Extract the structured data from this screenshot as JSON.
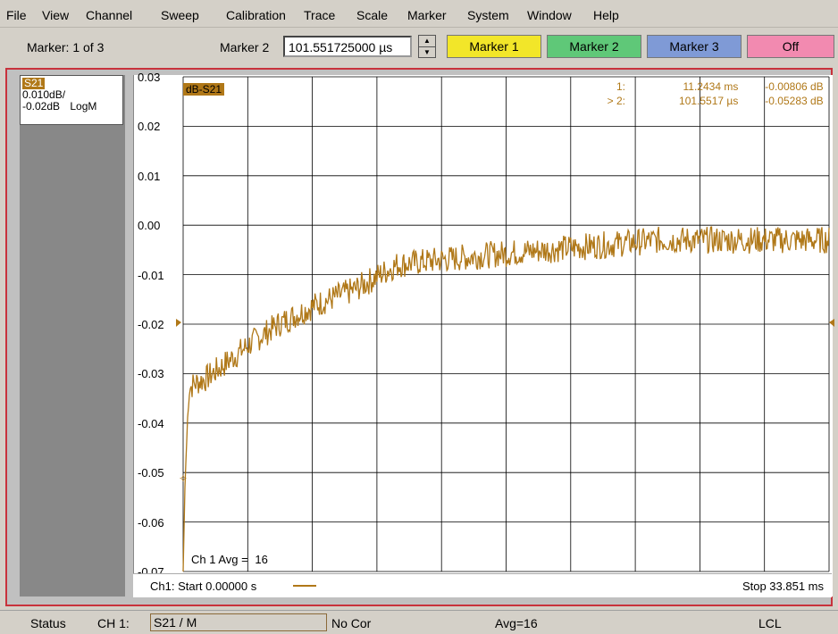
{
  "menu": [
    "File",
    "View",
    "Channel",
    "Sweep",
    "Calibration",
    "Trace",
    "Scale",
    "Marker",
    "System",
    "Window",
    "Help"
  ],
  "toolbar": {
    "marker_count": "Marker: 1 of 3",
    "marker_label": "Marker 2",
    "marker_value": "101.551725000 µs",
    "buttons": [
      {
        "label": "Marker 1",
        "color": "#f2e629"
      },
      {
        "label": "Marker 2",
        "color": "#5fc878"
      },
      {
        "label": "Marker 3",
        "color": "#7f9ad6"
      },
      {
        "label": "Off",
        "color": "#f28ab0"
      }
    ]
  },
  "trace": {
    "name": "S21",
    "scale": "0.010dB/",
    "ref": "-0.02dB",
    "format": "LogM"
  },
  "plot": {
    "trace_label": "dB-S21",
    "marker_readout": [
      {
        "id": "1:",
        "x": "11.2434 ms",
        "y": "-0.00806 dB"
      },
      {
        "id": "> 2:",
        "x": "101.5517 µs",
        "y": "-0.05283 dB"
      }
    ],
    "avg_label": "Ch 1 Avg =",
    "avg_value": "16",
    "start": "Ch1: Start 0.00000 s",
    "stop": "Stop 33.851 ms",
    "trace_color": "#b07818"
  },
  "chart_data": {
    "type": "line",
    "xlabel": "",
    "ylabel": "",
    "ylim": [
      -0.07,
      0.03
    ],
    "xlim": [
      0,
      33.851
    ],
    "yticks": [
      "0.03",
      "0.02",
      "0.01",
      "0.00",
      "-0.01",
      "-0.02",
      "-0.03",
      "-0.04",
      "-0.05",
      "-0.06",
      "-0.07"
    ],
    "grid": true,
    "series": [
      {
        "x": [
          0.0,
          0.1,
          0.3,
          0.6,
          1.2,
          2.2,
          3.5,
          5.0,
          7.0,
          9.0,
          11.2,
          13.5,
          16.0,
          19.0,
          22.0,
          25.0,
          28.0,
          31.0,
          33.85
        ],
        "y": [
          -0.07,
          -0.052,
          -0.033,
          -0.032,
          -0.031,
          -0.028,
          -0.024,
          -0.02,
          -0.016,
          -0.013,
          -0.008,
          -0.007,
          -0.006,
          -0.005,
          -0.004,
          -0.003,
          -0.003,
          -0.003,
          -0.003
        ]
      }
    ]
  },
  "status": {
    "label": "Status",
    "channel": "CH 1:",
    "trace": "S21 / M",
    "correction": "No Cor",
    "avg": "Avg=16",
    "mode": "LCL"
  }
}
